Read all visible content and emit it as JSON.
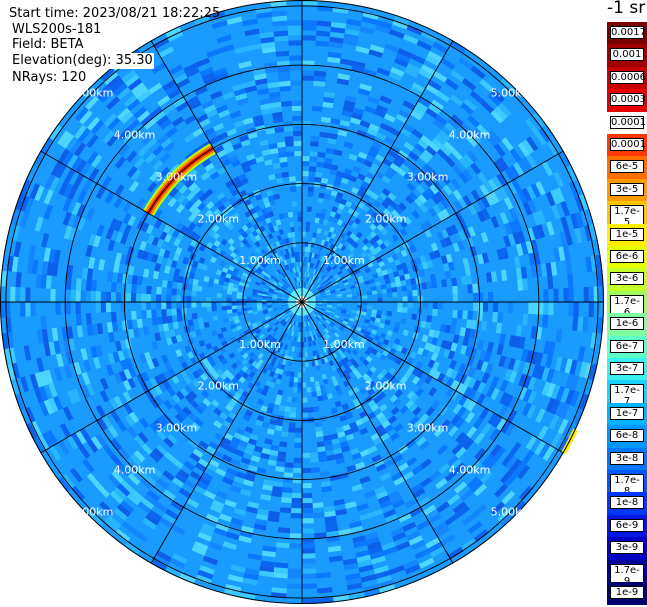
{
  "header": {
    "start_time": "Start time: 2023/08/21 18:22:25",
    "instrument": "WLS200s-181",
    "field": "Field: BETA",
    "elevation": "Elevation(deg): 35.30",
    "nrays": "NRays: 120"
  },
  "colorbar": {
    "unit": "-1 sr",
    "labels": [
      "0.0017",
      "0.001",
      "0.0006",
      "0.0003",
      "0.00017",
      "0.0001",
      "6e-5",
      "3e-5",
      "1.7e-5",
      "1e-5",
      "6e-6",
      "3e-6",
      "1.7e-6",
      "1e-6",
      "6e-7",
      "3e-7",
      "1.7e-7",
      "1e-7",
      "6e-8",
      "3e-8",
      "1.7e-8",
      "1e-8",
      "6e-9",
      "3e-9",
      "1.7e-9",
      "1e-9"
    ],
    "colors": [
      "#7a0000",
      "#9e0000",
      "#c80000",
      "#e80000",
      "#ffffff",
      "#ff3a00",
      "#ff6e00",
      "#ff9a00",
      "#ffc400",
      "#ffee00",
      "#e6ff00",
      "#c4ff2a",
      "#9eff58",
      "#7effa0",
      "#5effc8",
      "#38f0ee",
      "#1ad2ff",
      "#00b4ff",
      "#0096ff",
      "#0078ff",
      "#0058ff",
      "#0038ff",
      "#0018e0",
      "#0000c0",
      "#00009a",
      "#00006e"
    ]
  },
  "chart_data": {
    "type": "heatmap",
    "projection": "polar (PPI scan)",
    "field": "BETA",
    "unit": "-1 sr",
    "elevation_deg": 35.3,
    "nrays": 120,
    "range_rings_km": [
      1.0,
      2.0,
      3.0,
      4.0,
      5.0
    ],
    "ring_labels": [
      "1.00km",
      "2.00km",
      "3.00km",
      "4.00km",
      "5.00km"
    ],
    "radial_lines_deg": [
      0,
      30,
      60,
      90,
      120,
      150,
      180,
      210,
      240,
      270,
      300,
      330
    ],
    "background_level": "~1e-7 (light blue)",
    "features": [
      {
        "description": "strong return arc",
        "azimuth_deg_range": [
          300,
          330
        ],
        "range_km": 3.0,
        "level": "1e-5 to 6e-5"
      },
      {
        "description": "weak arc, east edge",
        "azimuth_deg_range": [
          115,
          120
        ],
        "range_km": 5.1,
        "level": "1e-5"
      }
    ],
    "grid": true
  }
}
